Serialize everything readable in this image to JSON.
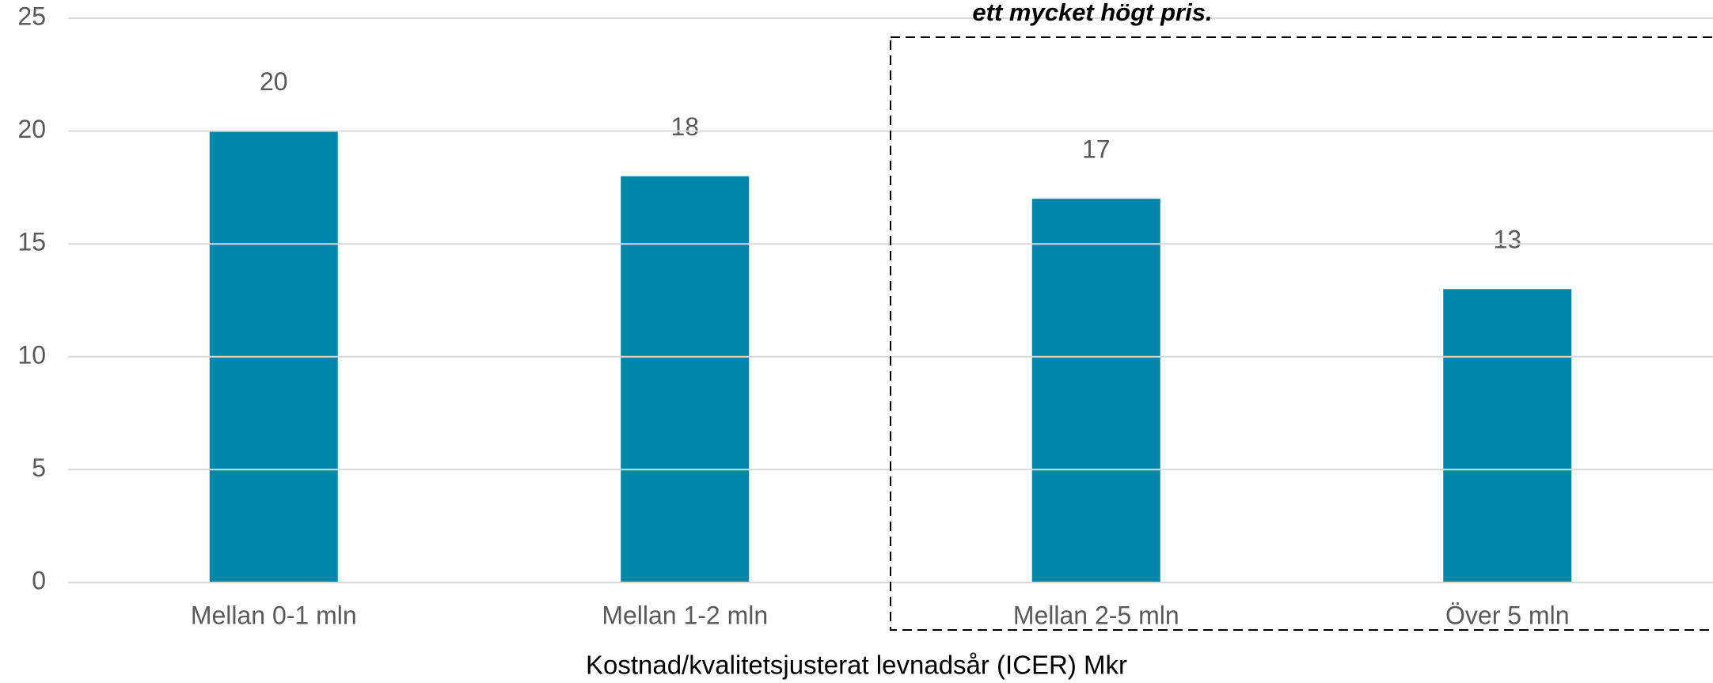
{
  "chart_data": {
    "type": "bar",
    "annotation": "ett mycket högt pris.",
    "x_label": "Kostnad/kvalitetsjusterat levnadsår (ICER) Mkr",
    "categories": [
      "Mellan 0-1 mln",
      "Mellan 1-2 mln",
      "Mellan 2-5 mln",
      "Över 5 mln"
    ],
    "values": [
      20,
      18,
      17,
      13
    ],
    "color": "#0087aa",
    "ylim": [
      0,
      25
    ],
    "yticks": [
      0,
      5,
      10,
      15,
      20,
      25
    ],
    "grid": true
  }
}
